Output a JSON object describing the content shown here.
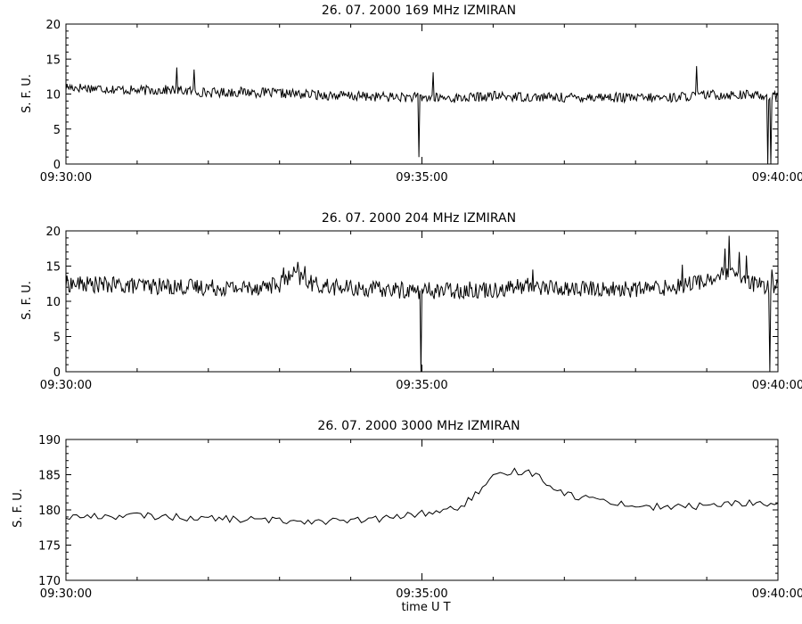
{
  "chart_data": [
    {
      "type": "line",
      "title": "26.  07.  2000    169  MHz    IZMIRAN",
      "ylabel": "S. F. U.",
      "xlabel": "",
      "xlim": [
        "09:30:00",
        "09:40:00"
      ],
      "ylim": [
        0,
        20
      ],
      "x_tick_labels": [
        "09:30:00",
        "09:35:00",
        "09:40:00"
      ],
      "y_ticks": [
        0,
        5,
        10,
        15,
        20
      ],
      "grid": false,
      "legend": "none",
      "baseline": [
        [
          0,
          11
        ],
        [
          0.5,
          10.8
        ],
        [
          1,
          10.5
        ],
        [
          1.5,
          10.6
        ],
        [
          2,
          10.2
        ],
        [
          2.5,
          10.3
        ],
        [
          3,
          10.1
        ],
        [
          3.5,
          9.9
        ],
        [
          4,
          9.7
        ],
        [
          4.5,
          9.6
        ],
        [
          5,
          9.5
        ],
        [
          5.5,
          9.4
        ],
        [
          6,
          9.7
        ],
        [
          6.5,
          9.6
        ],
        [
          7,
          9.5
        ],
        [
          7.5,
          9.6
        ],
        [
          8,
          9.4
        ],
        [
          8.5,
          9.5
        ],
        [
          9,
          9.9
        ],
        [
          9.5,
          9.9
        ],
        [
          10,
          9.7
        ]
      ],
      "noise": 0.7,
      "events": [
        {
          "t": 1.55,
          "v": 13.8
        },
        {
          "t": 1.8,
          "v": 13.5
        },
        {
          "t": 4.95,
          "v": 1.0
        },
        {
          "t": 5.15,
          "v": 13.1
        },
        {
          "t": 8.85,
          "v": 14.0
        },
        {
          "t": 9.85,
          "v": 0.0
        },
        {
          "t": 9.9,
          "v": 0.0
        }
      ]
    },
    {
      "type": "line",
      "title": "26.  07.  2000    204  MHz    IZMIRAN",
      "ylabel": "S. F. U.",
      "xlabel": "",
      "xlim": [
        "09:30:00",
        "09:40:00"
      ],
      "ylim": [
        0,
        20
      ],
      "x_tick_labels": [
        "09:30:00",
        "09:35:00",
        "09:40:00"
      ],
      "y_ticks": [
        0,
        5,
        10,
        15,
        20
      ],
      "grid": false,
      "legend": "none",
      "baseline": [
        [
          0,
          12.5
        ],
        [
          1,
          12.2
        ],
        [
          2,
          12.0
        ],
        [
          2.5,
          11.9
        ],
        [
          3,
          12.4
        ],
        [
          3.2,
          13.8
        ],
        [
          3.5,
          12.3
        ],
        [
          4,
          11.8
        ],
        [
          5,
          11.5
        ],
        [
          6,
          11.7
        ],
        [
          6.5,
          12.2
        ],
        [
          7,
          11.8
        ],
        [
          8,
          11.7
        ],
        [
          8.5,
          12.0
        ],
        [
          9,
          13.0
        ],
        [
          9.3,
          14.0
        ],
        [
          9.5,
          13.0
        ],
        [
          9.8,
          12.0
        ],
        [
          10,
          12.5
        ]
      ],
      "noise": 1.2,
      "events": [
        {
          "t": 3.05,
          "v": 14.8
        },
        {
          "t": 3.25,
          "v": 15.6
        },
        {
          "t": 3.35,
          "v": 15.0
        },
        {
          "t": 4.98,
          "v": 0.0
        },
        {
          "t": 6.55,
          "v": 14.5
        },
        {
          "t": 8.65,
          "v": 15.2
        },
        {
          "t": 9.25,
          "v": 17.5
        },
        {
          "t": 9.32,
          "v": 19.3
        },
        {
          "t": 9.45,
          "v": 17.0
        },
        {
          "t": 9.55,
          "v": 16.5
        },
        {
          "t": 9.88,
          "v": 0.0
        },
        {
          "t": 9.92,
          "v": 14.5
        }
      ]
    },
    {
      "type": "line",
      "title": "26.  07.  2000    3000  MHz    IZMIRAN",
      "ylabel": "S. F. U.",
      "xlabel": "time   U T",
      "xlim": [
        "09:30:00",
        "09:40:00"
      ],
      "ylim": [
        170,
        190
      ],
      "x_tick_labels": [
        "09:30:00",
        "09:35:00",
        "09:40:00"
      ],
      "y_ticks": [
        170,
        175,
        180,
        185,
        190
      ],
      "grid": false,
      "legend": "none",
      "baseline": [
        [
          0,
          179
        ],
        [
          1,
          179.2
        ],
        [
          2,
          178.8
        ],
        [
          3,
          178.5
        ],
        [
          4,
          178.4
        ],
        [
          4.5,
          178.8
        ],
        [
          5,
          179.5
        ],
        [
          5.5,
          180.2
        ],
        [
          5.8,
          182.5
        ],
        [
          6.0,
          184.5
        ],
        [
          6.3,
          185.5
        ],
        [
          6.6,
          185.2
        ],
        [
          6.8,
          183.5
        ],
        [
          7.1,
          182.0
        ],
        [
          7.5,
          181.5
        ],
        [
          8,
          180.5
        ],
        [
          8.5,
          180.4
        ],
        [
          9,
          180.6
        ],
        [
          9.5,
          181.0
        ],
        [
          10,
          180.8
        ]
      ],
      "noise": 0.5,
      "events": []
    }
  ]
}
